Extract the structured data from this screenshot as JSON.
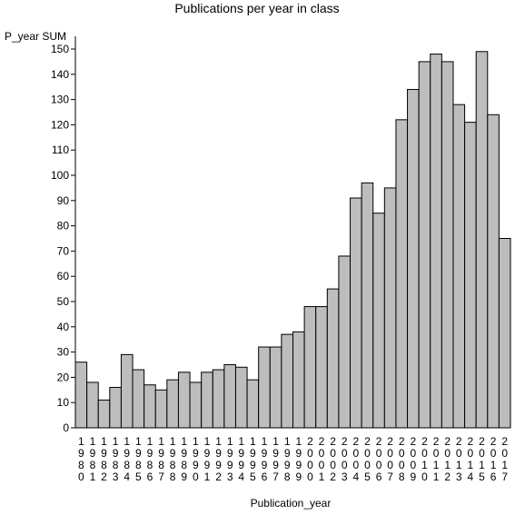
{
  "chart_data": {
    "type": "bar",
    "title": "Publications per year in class",
    "ylabel": "P_year SUM",
    "xlabel": "Publication_year",
    "ylim": [
      0,
      150
    ],
    "ytick_step": 10,
    "bar_color": "#bdbdbd",
    "categories": [
      "1980",
      "1981",
      "1982",
      "1983",
      "1984",
      "1985",
      "1986",
      "1987",
      "1988",
      "1989",
      "1990",
      "1991",
      "1992",
      "1993",
      "1994",
      "1995",
      "1996",
      "1997",
      "1998",
      "1999",
      "2000",
      "2001",
      "2002",
      "2003",
      "2004",
      "2005",
      "2006",
      "2007",
      "2008",
      "2009",
      "2010",
      "2011",
      "2012",
      "2013",
      "2014",
      "2015",
      "2016",
      "2017"
    ],
    "values": [
      26,
      18,
      11,
      16,
      29,
      23,
      17,
      15,
      19,
      22,
      18,
      22,
      23,
      25,
      24,
      19,
      32,
      32,
      37,
      38,
      48,
      48,
      55,
      68,
      91,
      97,
      85,
      95,
      122,
      134,
      145,
      148,
      145,
      128,
      121,
      149,
      124,
      75
    ]
  }
}
